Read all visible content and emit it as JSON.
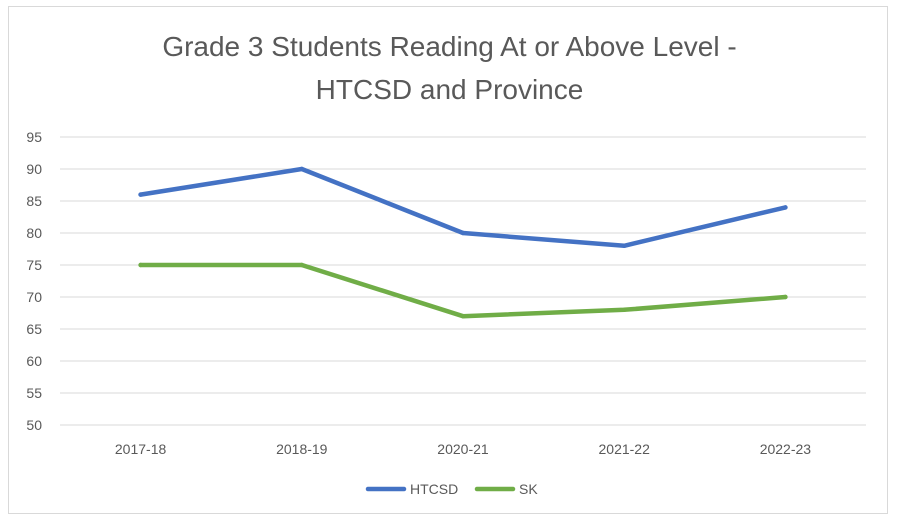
{
  "chart_data": {
    "type": "line",
    "title": "Grade 3 Students Reading At or Above Level -",
    "subtitle": "HTCSD and Province",
    "categories": [
      "2017-18",
      "2018-19",
      "2020-21",
      "2021-22",
      "2022-23"
    ],
    "series": [
      {
        "name": "HTCSD",
        "values": [
          86,
          90,
          80,
          78,
          84
        ],
        "color": "#4472c4"
      },
      {
        "name": "SK",
        "values": [
          75,
          75,
          67,
          68,
          70
        ],
        "color": "#70ad47"
      }
    ],
    "ylim": [
      50,
      95
    ],
    "yticks": [
      95,
      90,
      85,
      80,
      75,
      70,
      65,
      60,
      55,
      50
    ],
    "grid": true,
    "legend": "bottom",
    "xlabel": "",
    "ylabel": ""
  }
}
